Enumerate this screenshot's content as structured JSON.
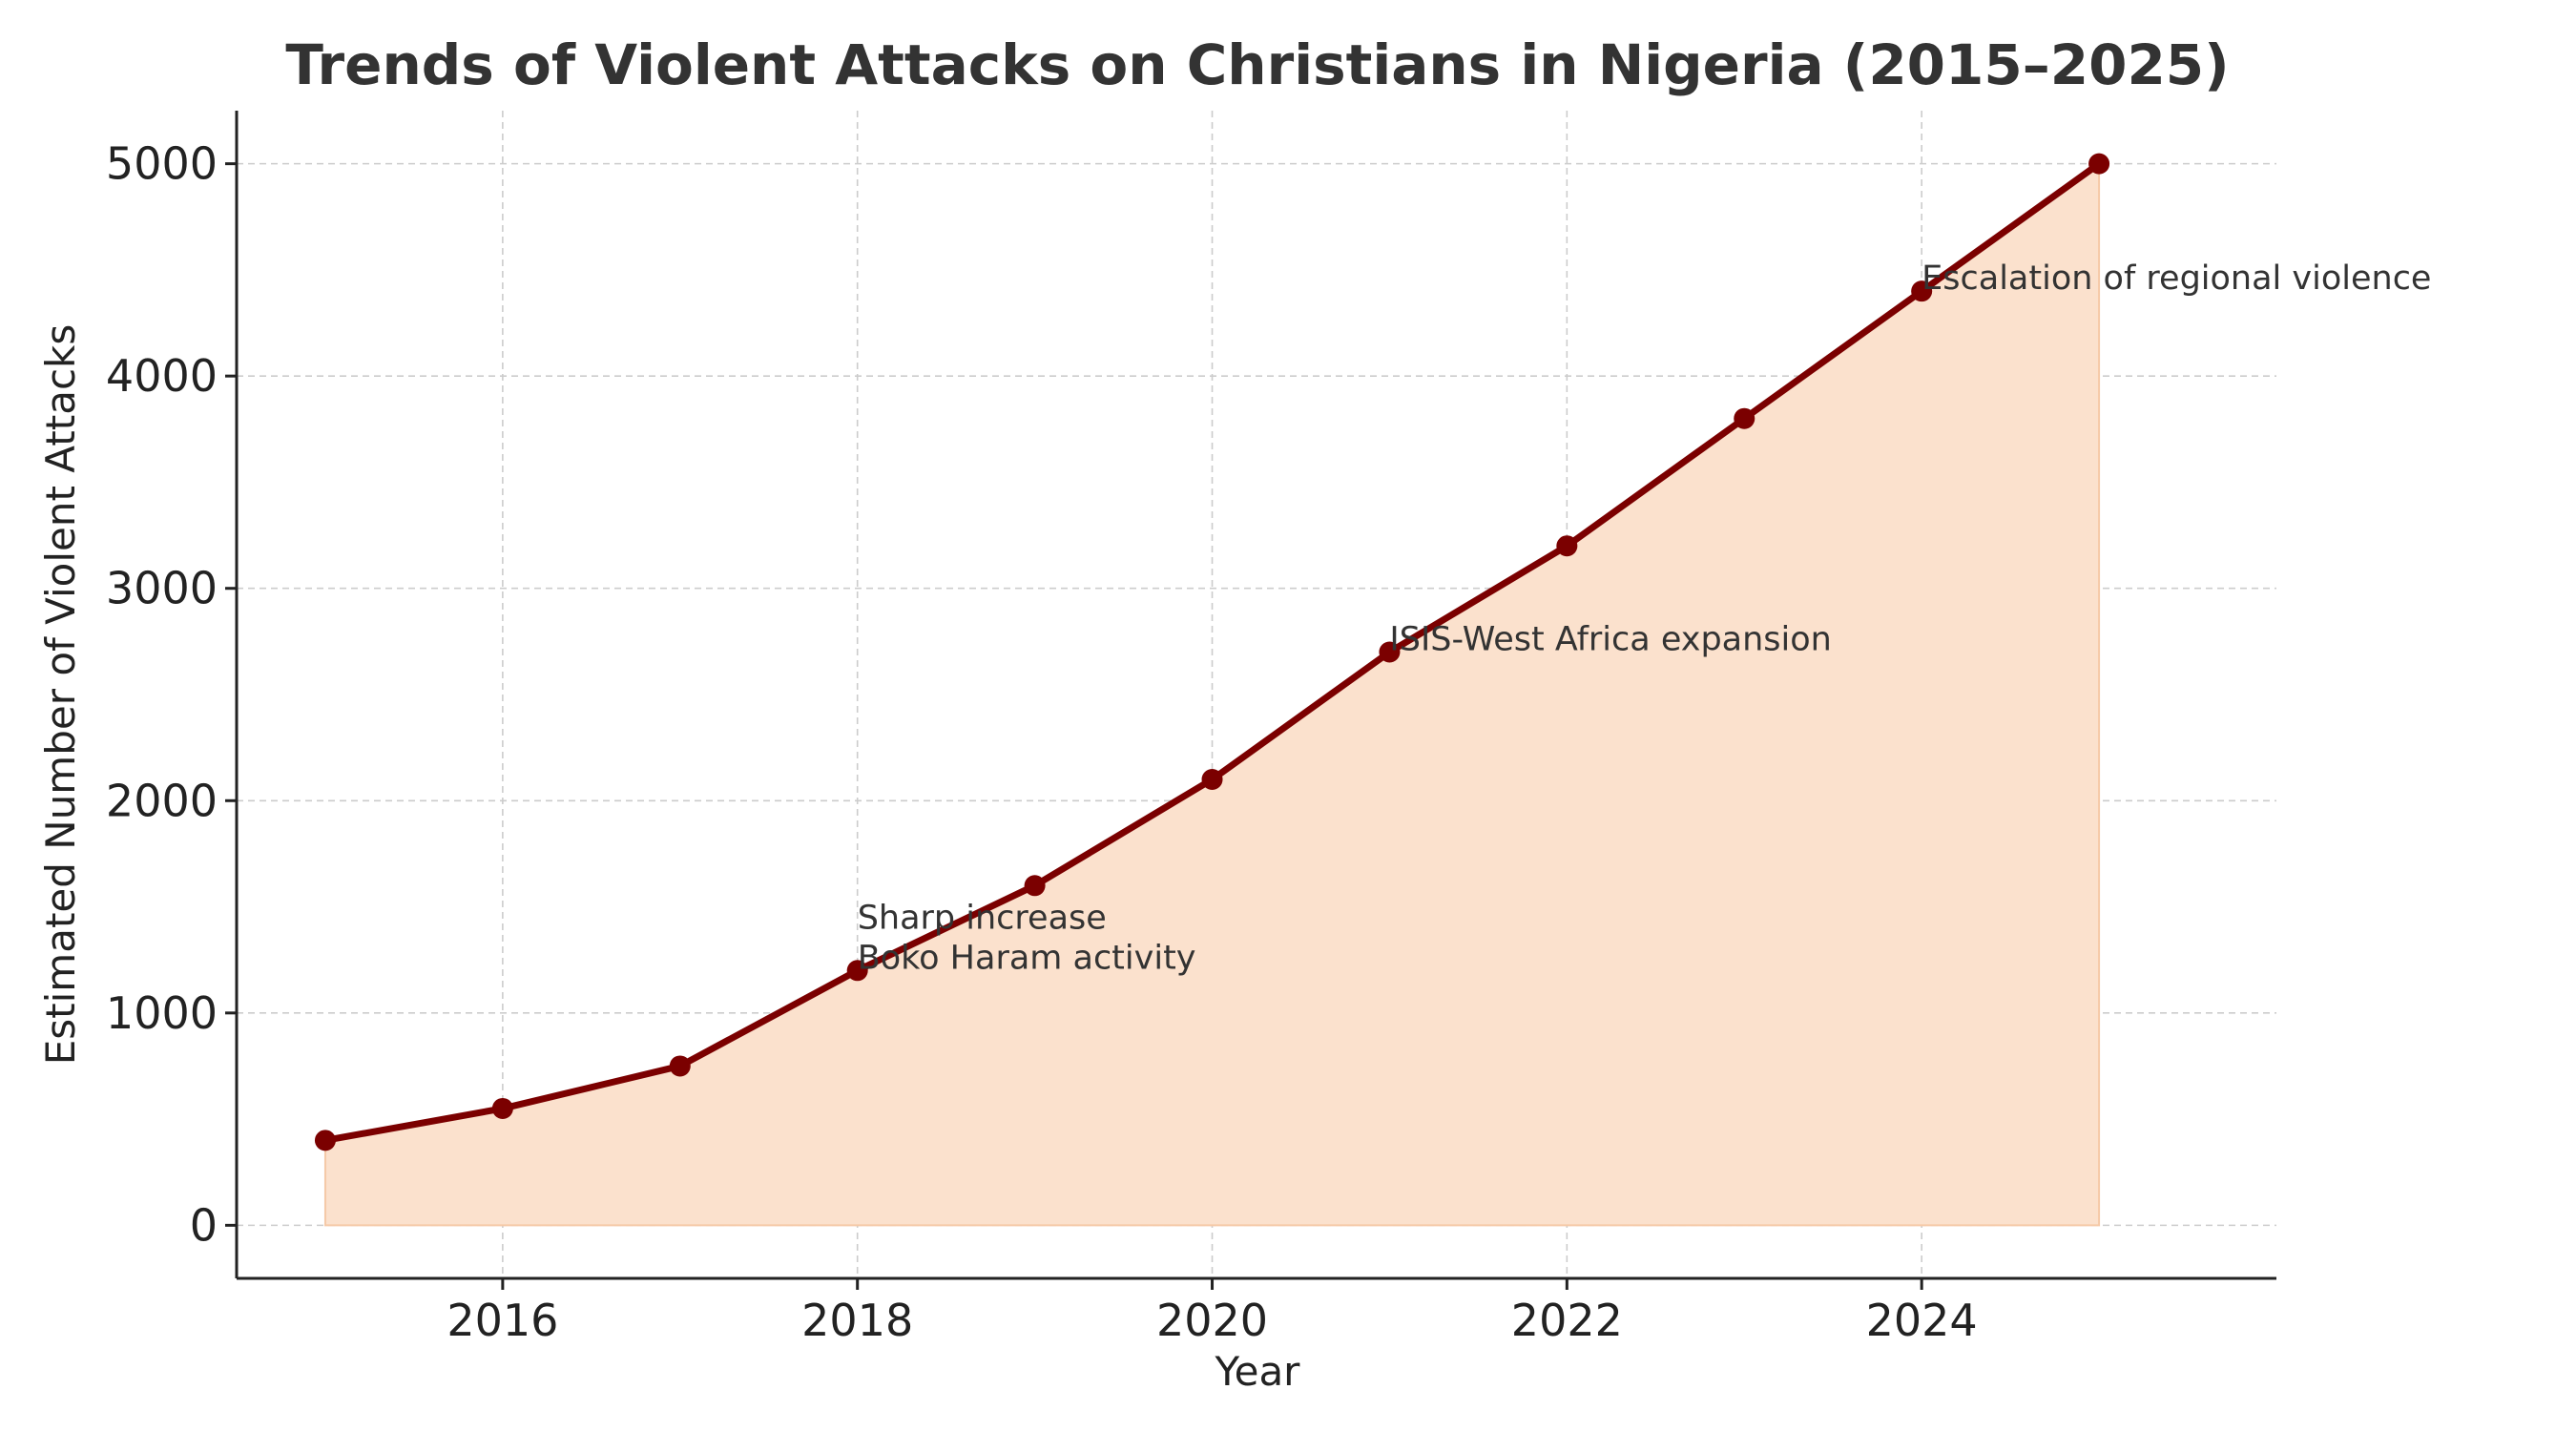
{
  "chart_data": {
    "type": "area",
    "title": "Trends of Violent Attacks on Christians in Nigeria (2015–2025)",
    "xlabel": "Year",
    "ylabel": "Estimated Number of Violent Attacks",
    "x": [
      2015,
      2016,
      2017,
      2018,
      2019,
      2020,
      2021,
      2022,
      2023,
      2024,
      2025
    ],
    "series": [
      {
        "name": "Violent Attacks",
        "values": [
          400,
          550,
          750,
          1200,
          1600,
          2100,
          2700,
          3200,
          3800,
          4400,
          5000
        ]
      }
    ],
    "xlim": [
      2014.5,
      2026.0
    ],
    "ylim": [
      -250,
      5250
    ],
    "xticks": [
      2016,
      2018,
      2020,
      2022,
      2024
    ],
    "xtick_labels": [
      "2016",
      "2018",
      "2020",
      "2022",
      "2024"
    ],
    "yticks": [
      0,
      1000,
      2000,
      3000,
      4000,
      5000
    ],
    "ytick_labels": [
      "0",
      "1000",
      "2000",
      "3000",
      "4000",
      "5000"
    ],
    "grid": true,
    "annotations": [
      {
        "x": 2018,
        "y": 1200,
        "lines": [
          "Sharp increase",
          "Boko Haram activity"
        ]
      },
      {
        "x": 2021,
        "y": 2700,
        "lines": [
          "ISIS-West Africa expansion"
        ]
      },
      {
        "x": 2024,
        "y": 4400,
        "lines": [
          "Escalation of regional violence"
        ]
      }
    ],
    "colors": {
      "line": "#7b0000",
      "marker": "#7b0000",
      "fill": "#fbe1cd",
      "fill_edge": "#f5c9a7"
    }
  }
}
